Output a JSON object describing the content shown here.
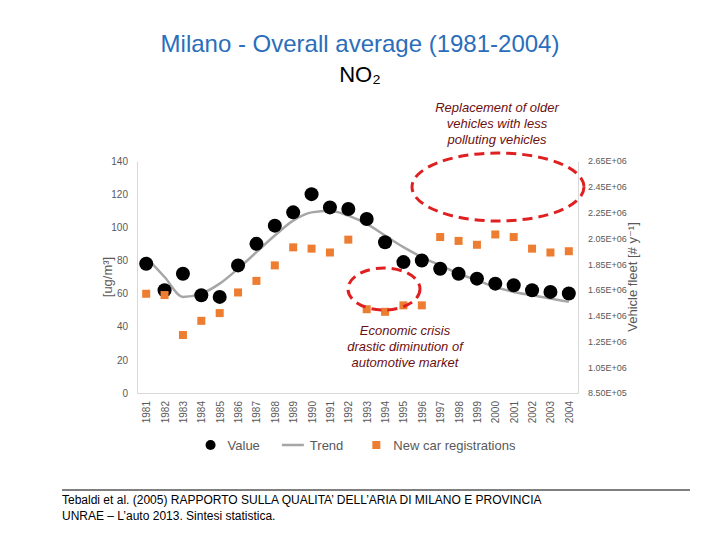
{
  "chart_data": {
    "type": "line",
    "title": "Milano - Overall average (1981-2004)",
    "subtitle": "NO₂",
    "y_label": "[ug/m³]",
    "y2_label": "Vehicle fleet [# y⁻¹]",
    "categories": [
      "1981",
      "1982",
      "1983",
      "1984",
      "1985",
      "1986",
      "1987",
      "1988",
      "1989",
      "1990",
      "1991",
      "1992",
      "1993",
      "1994",
      "1995",
      "1996",
      "1997",
      "1998",
      "1999",
      "2000",
      "2001",
      "2002",
      "2003",
      "2004"
    ],
    "series": [
      {
        "name": "Value",
        "type": "scatter",
        "marker": "circle",
        "color": "#000000",
        "values": [
          78,
          62,
          72,
          59,
          58,
          77,
          90,
          101,
          109,
          120,
          112,
          111,
          105,
          91,
          79,
          80,
          75,
          72,
          69,
          66,
          65,
          62,
          61,
          60
        ]
      },
      {
        "name": "Trend",
        "type": "line",
        "color": "#a6a6a6",
        "line_style": "solid",
        "values": [
          82,
          70,
          58,
          60,
          66,
          75,
          85,
          95,
          104,
          109,
          110,
          107,
          102,
          95,
          88,
          82,
          77,
          72,
          68,
          64,
          61,
          59,
          57,
          55
        ]
      },
      {
        "name": "New car registrations",
        "type": "scatter",
        "marker": "square",
        "color": "#ed7d31",
        "axis": "y2",
        "values": [
          1620000,
          1610000,
          1300000,
          1410000,
          1470000,
          1630000,
          1720000,
          1840000,
          1980000,
          1970000,
          1940000,
          2040000,
          1500000,
          1480000,
          1530000,
          1530000,
          2060000,
          2030000,
          2000000,
          2080000,
          2060000,
          1970000,
          1940000,
          1950000
        ]
      }
    ],
    "ylim": [
      0,
      140
    ],
    "yticks": [
      0,
      20,
      40,
      60,
      80,
      100,
      120,
      140
    ],
    "y2lim": [
      850000,
      2650000
    ],
    "y2ticks": [
      {
        "value": 850000,
        "label": "8.50E+05"
      },
      {
        "value": 1050000,
        "label": "1.05E+06"
      },
      {
        "value": 1250000,
        "label": "1.25E+06"
      },
      {
        "value": 1450000,
        "label": "1.45E+06"
      },
      {
        "value": 1650000,
        "label": "1.65E+06"
      },
      {
        "value": 1850000,
        "label": "1.85E+06"
      },
      {
        "value": 2050000,
        "label": "2.05E+06"
      },
      {
        "value": 2250000,
        "label": "2.25E+06"
      },
      {
        "value": 2450000,
        "label": "2.45E+06"
      },
      {
        "value": 2650000,
        "label": "2.65E+06"
      }
    ],
    "grid": false,
    "legend": "bottom",
    "annotations": [
      {
        "lines": [
          "Replacement of older",
          "vehicles with less",
          "polluting vehicles"
        ]
      },
      {
        "lines": [
          "Economic crisis",
          "drastic diminution of",
          "automotive market"
        ]
      }
    ],
    "sources": [
      "Tebaldi et al. (2005) RAPPORTO SULLA QUALITA’ DELL’ARIA DI MILANO E PROVINCIA",
      "UNRAE – L’auto 2013. Sintesi statistica."
    ]
  }
}
